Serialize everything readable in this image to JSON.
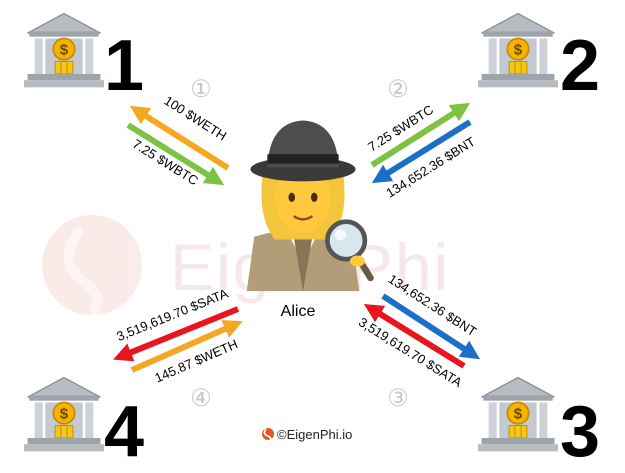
{
  "watermark": "EigenPhi",
  "credit": "©EigenPhi.io",
  "trader": {
    "name": "Alice",
    "icon": "detective-icon"
  },
  "banks": [
    {
      "number": "1",
      "icon": "bank-icon"
    },
    {
      "number": "2",
      "icon": "bank-icon"
    },
    {
      "number": "3",
      "icon": "bank-icon"
    },
    {
      "number": "4",
      "icon": "bank-icon"
    }
  ],
  "steps": [
    "①",
    "②",
    "③",
    "④"
  ],
  "flows": {
    "step1_out": "100 $WETH",
    "step1_in": "7.25 $WBTC",
    "step2_out": "7.25 $WBTC",
    "step2_in": "134,652.36 $BNT",
    "step3_out": "134,652.36 $BNT",
    "step3_in": "3,519,619.70 $SATA",
    "step4_out": "3,519,619.70 $SATA",
    "step4_in": "145.87 $WETH"
  },
  "colors": {
    "weth": "#f5a623",
    "wbtc": "#7dc243",
    "bnt": "#1c6fc8",
    "sata": "#e8141e"
  }
}
